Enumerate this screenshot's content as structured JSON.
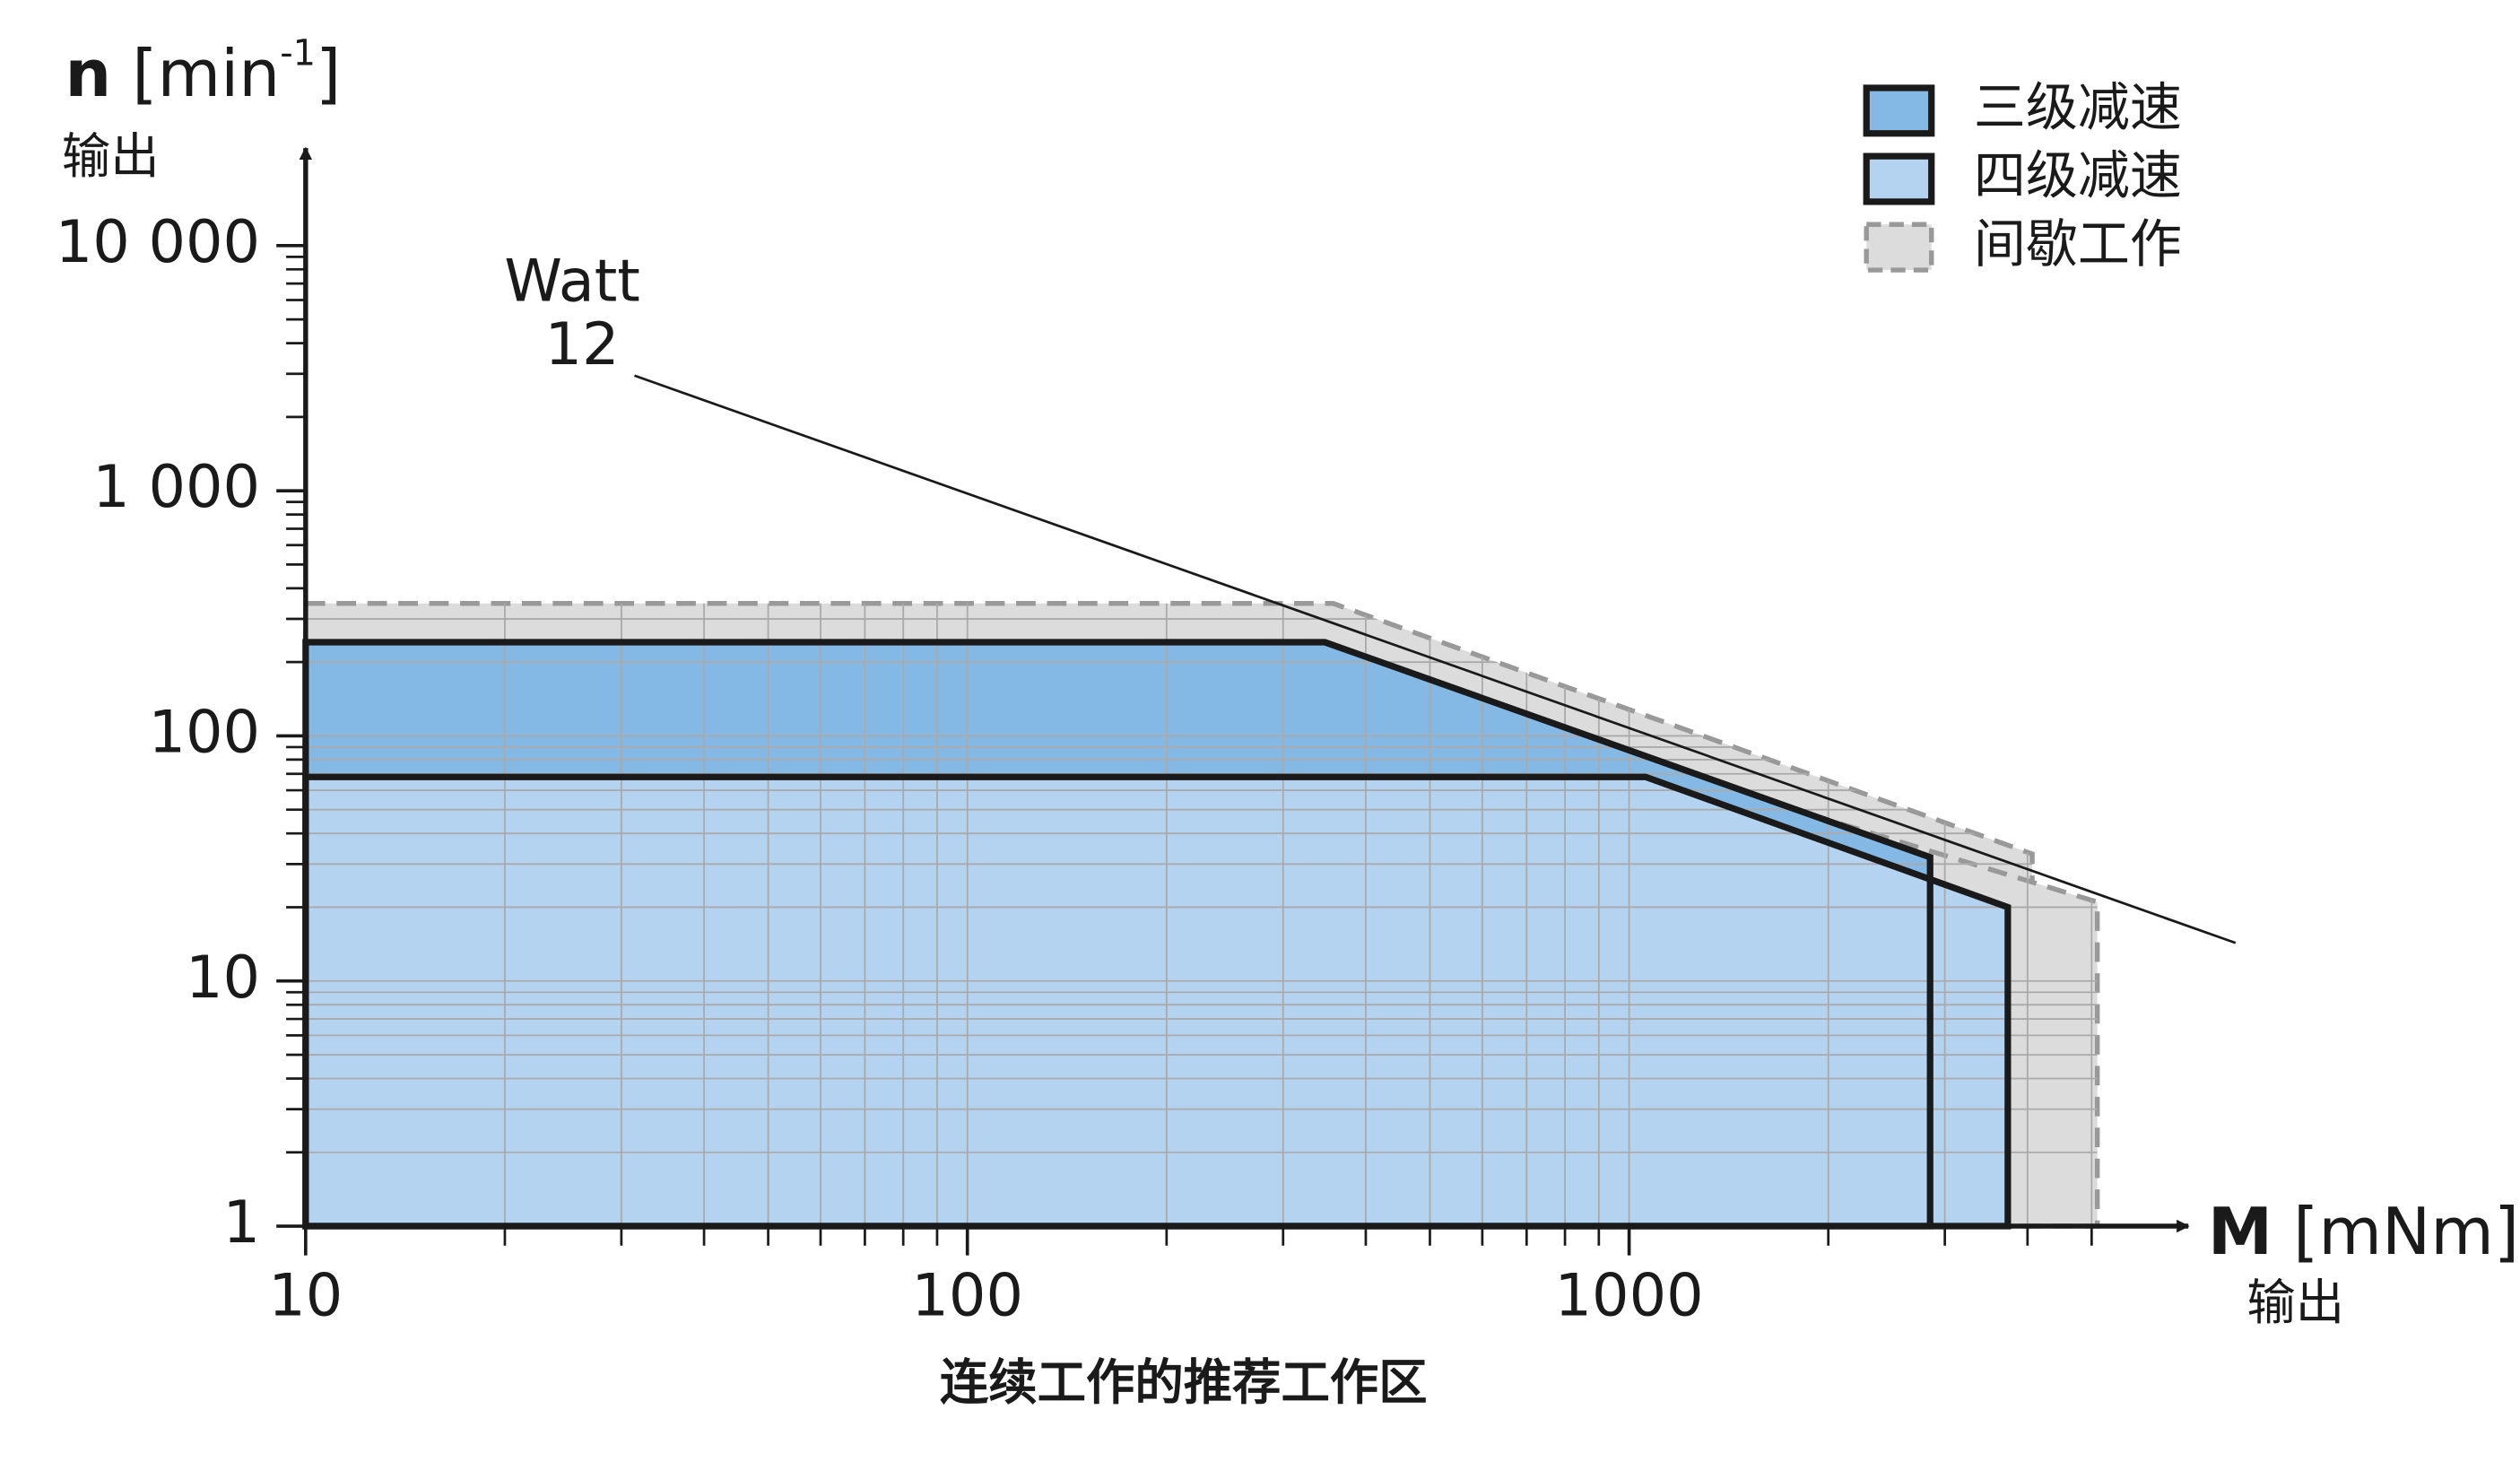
{
  "chart_data": {
    "type": "area",
    "y_symbol": "n",
    "y_unit": "[min",
    "y_unit_sup": "-1",
    "y_unit_end": "]",
    "y_sub": "输出",
    "x_symbol": "M",
    "x_unit": "[mNm]",
    "x_sub": "输出",
    "caption": "连续工作的推荐工作区",
    "log_x": true,
    "log_y": true,
    "grid": true,
    "xlim": [
      10,
      7000
    ],
    "ylim": [
      1,
      25000
    ],
    "xticks": [
      10,
      100,
      1000
    ],
    "xminor": [
      20,
      30,
      40,
      50,
      60,
      70,
      80,
      90,
      200,
      300,
      400,
      500,
      600,
      700,
      800,
      900,
      2000,
      3000,
      4000,
      5000
    ],
    "yticks": [
      1,
      10,
      100,
      {
        "value": 1000,
        "label": "1 000"
      },
      {
        "value": 10000,
        "label": "10 000"
      }
    ],
    "yminor": [
      2,
      3,
      4,
      5,
      6,
      7,
      8,
      9,
      20,
      30,
      40,
      50,
      60,
      70,
      80,
      90,
      200,
      300,
      400,
      500,
      600,
      700,
      800,
      900,
      2000,
      3000,
      4000,
      5000,
      6000,
      7000,
      8000,
      9000
    ],
    "series": [
      {
        "name": "三级减速",
        "color": "#84b9e6",
        "style": "solid",
        "regions": [
          {
            "x": [
              10,
              347,
              2850,
              2850,
              10
            ],
            "values": [
              241,
              241,
              32,
              1,
              1
            ]
          }
        ]
      },
      {
        "name": "四级减速",
        "color": "#b4d3f1",
        "style": "solid",
        "regions": [
          {
            "x": [
              10,
              1059,
              3735,
              3735,
              10
            ],
            "values": [
              68,
              68,
              20,
              1,
              1
            ]
          }
        ]
      },
      {
        "name": "间歇工作",
        "color": "#dcdcdc",
        "style": "dashed",
        "regions": [
          {
            "x": [
              10,
              357,
              4066,
              4066,
              10
            ],
            "values": [
              347,
              347,
              33,
              1,
              1
            ]
          },
          {
            "x": [
              10,
              990,
              5100,
              5100,
              10
            ],
            "values": [
              81,
              81,
              21,
              1,
              1
            ]
          }
        ]
      }
    ],
    "power_line": {
      "label": "Watt",
      "value": 12,
      "x": [
        31.4,
        8250
      ],
      "values": [
        2950,
        14.3
      ]
    }
  }
}
